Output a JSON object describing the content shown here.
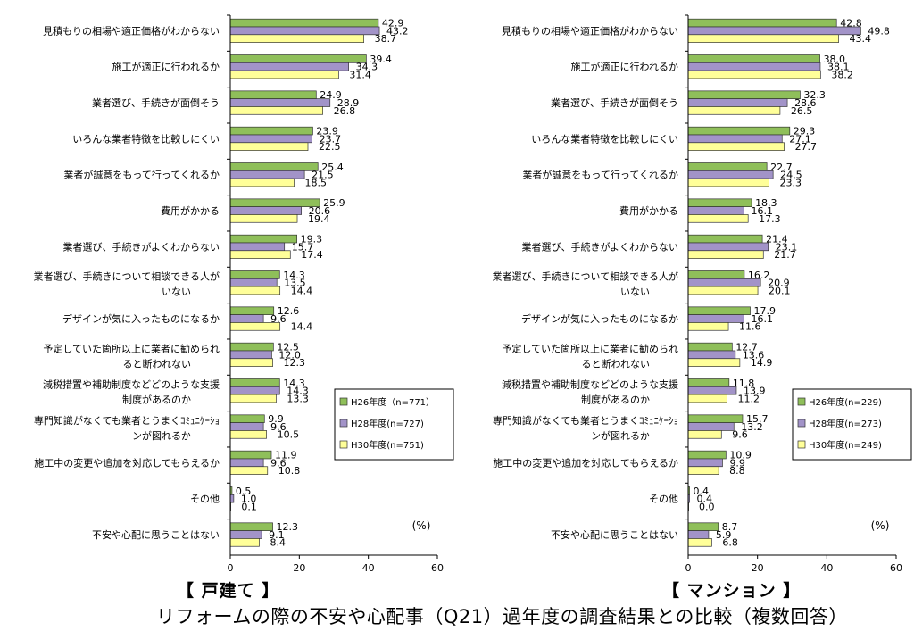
{
  "caption": "リフォームの際の不安や心配事（Q21）過年度の調査結果との比較（複数回答）",
  "chart_data": [
    {
      "type": "bar",
      "orientation": "horizontal",
      "panel_title": "【 戸建て 】",
      "unit_label": "(%)",
      "xlim": [
        0,
        60
      ],
      "xticks": [
        0,
        20,
        40,
        60
      ],
      "grid": false,
      "legend_position": "right-lower",
      "categories": [
        [
          "見積もりの相場や適正価格がわからない"
        ],
        [
          "施工が適正に行われるか"
        ],
        [
          "業者選び、手続きが面倒そう"
        ],
        [
          "いろんな業者特徴を比較しにくい"
        ],
        [
          "業者が誠意をもって行ってくれるか"
        ],
        [
          "費用がかかる"
        ],
        [
          "業者選び、手続きがよくわからない"
        ],
        [
          "業者選び、手続きについて相談できる人が",
          "いない"
        ],
        [
          "デザインが気に入ったものになるか"
        ],
        [
          "予定していた箇所以上に業者に勧められ",
          "ると断われない"
        ],
        [
          "減税措置や補助制度などどのような支援",
          "制度があるのか"
        ],
        [
          "専門知識がなくても業者とうまくｺﾐｭﾆｹｰｼｮ",
          "ンが図れるか"
        ],
        [
          "施工中の変更や追加を対応してもらえるか"
        ],
        [
          "その他"
        ],
        [
          "不安や心配に思うことはない"
        ]
      ],
      "series": [
        {
          "name": "H26年度（n=771）",
          "color": "#8fbf5a",
          "values": [
            42.9,
            39.4,
            24.9,
            23.9,
            25.4,
            25.9,
            19.3,
            14.3,
            12.6,
            12.5,
            14.3,
            9.9,
            11.9,
            0.5,
            12.3
          ]
        },
        {
          "name": "H28年度(n=727)",
          "color": "#a293c8",
          "values": [
            43.2,
            34.3,
            28.9,
            23.7,
            21.5,
            20.6,
            15.7,
            13.5,
            9.6,
            12.0,
            14.3,
            9.6,
            9.6,
            1.0,
            9.1
          ]
        },
        {
          "name": "H30年度(n=751)",
          "color": "#ffff99",
          "values": [
            38.7,
            31.4,
            26.8,
            22.5,
            18.5,
            19.4,
            17.4,
            14.4,
            14.4,
            12.3,
            13.3,
            10.5,
            10.8,
            0.1,
            8.4
          ]
        }
      ]
    },
    {
      "type": "bar",
      "orientation": "horizontal",
      "panel_title": "【 マンション 】",
      "unit_label": "(%)",
      "xlim": [
        0,
        60
      ],
      "xticks": [
        0,
        20,
        40,
        60
      ],
      "grid": false,
      "legend_position": "right-lower",
      "categories": [
        [
          "見積もりの相場や適正価格がわからない"
        ],
        [
          "施工が適正に行われるか"
        ],
        [
          "業者選び、手続きが面倒そう"
        ],
        [
          "いろんな業者特徴を比較しにくい"
        ],
        [
          "業者が誠意をもって行ってくれるか"
        ],
        [
          "費用がかかる"
        ],
        [
          "業者選び、手続きがよくわからない"
        ],
        [
          "業者選び、手続きについて相談できる人が",
          "いない"
        ],
        [
          "デザインが気に入ったものになるか"
        ],
        [
          "予定していた箇所以上に業者に勧められ",
          "ると断われない"
        ],
        [
          "減税措置や補助制度などどのような支援",
          "制度があるのか"
        ],
        [
          "専門知識がなくても業者とうまくｺﾐｭﾆｹｰｼｮ",
          "ンが図れるか"
        ],
        [
          "施工中の変更や追加を対応してもらえるか"
        ],
        [
          "その他"
        ],
        [
          "不安や心配に思うことはない"
        ]
      ],
      "series": [
        {
          "name": "H26年度(n=229)",
          "color": "#8fbf5a",
          "values": [
            42.8,
            38.0,
            32.3,
            29.3,
            22.7,
            18.3,
            21.4,
            16.2,
            17.9,
            12.7,
            11.8,
            15.7,
            10.9,
            0.4,
            8.7
          ]
        },
        {
          "name": "H28年度(n=273)",
          "color": "#a293c8",
          "values": [
            49.8,
            38.1,
            28.6,
            27.1,
            24.5,
            16.1,
            23.1,
            20.9,
            16.1,
            13.6,
            13.9,
            13.2,
            9.9,
            0.4,
            5.9
          ]
        },
        {
          "name": "H30年度(n=249)",
          "color": "#ffff99",
          "values": [
            43.4,
            38.2,
            26.5,
            27.7,
            23.3,
            17.3,
            21.7,
            20.1,
            11.6,
            14.9,
            11.2,
            9.6,
            8.8,
            0.0,
            6.8
          ]
        }
      ]
    }
  ]
}
